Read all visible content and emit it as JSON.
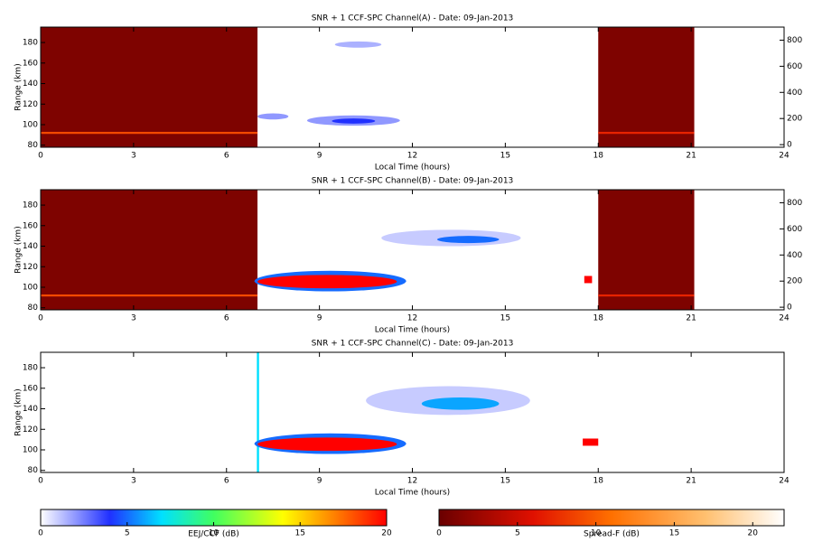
{
  "chart_data": [
    {
      "type": "heatmap",
      "title": "SNR + 1 CCF-SPC Channel(A) - Date: 09-Jan-2013",
      "xlabel": "Local Time (hours)",
      "ylabel": "Range (km)",
      "xlim": [
        0,
        24
      ],
      "xticks": [
        0,
        3,
        6,
        9,
        12,
        15,
        18,
        21,
        24
      ],
      "ylim": [
        78,
        195
      ],
      "yticks": [
        80,
        100,
        120,
        140,
        160,
        180
      ],
      "y2lim": [
        -20,
        900
      ],
      "y2ticks": [
        0,
        200,
        400,
        600,
        800
      ],
      "features": [
        {
          "shape": "rect",
          "bar": 1,
          "x0": 0,
          "x1": 7,
          "y0": 78,
          "y1": 195,
          "value": 1
        },
        {
          "shape": "rect",
          "bar": 1,
          "x0": 18,
          "x1": 21.1,
          "y0": 78,
          "y1": 195,
          "value": 1
        },
        {
          "shape": "rect",
          "bar": 1,
          "x0": 0,
          "x1": 7,
          "y0": 91,
          "y1": 93,
          "value": 9
        },
        {
          "shape": "rect",
          "bar": 1,
          "x0": 18,
          "x1": 21.1,
          "y0": 91,
          "y1": 93,
          "value": 7
        },
        {
          "shape": "ellipse",
          "bar": 0,
          "x0": 7,
          "x1": 8,
          "y0": 105,
          "y1": 111,
          "value": 2
        },
        {
          "shape": "ellipse",
          "bar": 0,
          "x0": 8.6,
          "x1": 11.6,
          "y0": 99,
          "y1": 109,
          "value": 2
        },
        {
          "shape": "ellipse",
          "bar": 0,
          "x0": 9.4,
          "x1": 10.8,
          "y0": 101,
          "y1": 106,
          "value": 4
        },
        {
          "shape": "ellipse",
          "bar": 0,
          "x0": 9.5,
          "x1": 11,
          "y0": 175,
          "y1": 181,
          "value": 1.5
        }
      ]
    },
    {
      "type": "heatmap",
      "title": "SNR + 1 CCF-SPC Channel(B) - Date: 09-Jan-2013",
      "xlabel": "Local Time (hours)",
      "ylabel": "Range (km)",
      "xlim": [
        0,
        24
      ],
      "xticks": [
        0,
        3,
        6,
        9,
        12,
        15,
        18,
        21,
        24
      ],
      "ylim": [
        78,
        195
      ],
      "yticks": [
        80,
        100,
        120,
        140,
        160,
        180
      ],
      "y2lim": [
        -20,
        900
      ],
      "y2ticks": [
        0,
        200,
        400,
        600,
        800
      ],
      "features": [
        {
          "shape": "rect",
          "bar": 1,
          "x0": 0,
          "x1": 7,
          "y0": 78,
          "y1": 195,
          "value": 1
        },
        {
          "shape": "rect",
          "bar": 1,
          "x0": 18,
          "x1": 21.1,
          "y0": 78,
          "y1": 195,
          "value": 1
        },
        {
          "shape": "rect",
          "bar": 1,
          "x0": 0,
          "x1": 7,
          "y0": 91,
          "y1": 93,
          "value": 9
        },
        {
          "shape": "rect",
          "bar": 1,
          "x0": 18,
          "x1": 21.1,
          "y0": 91,
          "y1": 93,
          "value": 7
        },
        {
          "shape": "ellipse",
          "bar": 0,
          "x0": 6.9,
          "x1": 11.8,
          "y0": 96,
          "y1": 116,
          "value": 5
        },
        {
          "shape": "ellipse",
          "bar": 0,
          "x0": 7,
          "x1": 11.5,
          "y0": 99,
          "y1": 112,
          "value": 20
        },
        {
          "shape": "ellipse",
          "bar": 0,
          "x0": 11,
          "x1": 15.5,
          "y0": 140,
          "y1": 156,
          "value": 1
        },
        {
          "shape": "ellipse",
          "bar": 0,
          "x0": 12.8,
          "x1": 14.8,
          "y0": 143,
          "y1": 150,
          "value": 5
        },
        {
          "shape": "rect",
          "bar": 0,
          "x0": 17.55,
          "x1": 17.8,
          "y0": 104,
          "y1": 111,
          "value": 20
        }
      ]
    },
    {
      "type": "heatmap",
      "title": "SNR + 1 CCF-SPC Channel(C) - Date: 09-Jan-2013",
      "xlabel": "Local Time (hours)",
      "ylabel": "Range (km)",
      "xlim": [
        0,
        24
      ],
      "xticks": [
        0,
        3,
        6,
        9,
        12,
        15,
        18,
        21,
        24
      ],
      "ylim": [
        78,
        195
      ],
      "yticks": [
        80,
        100,
        120,
        140,
        160,
        180
      ],
      "features": [
        {
          "shape": "rect",
          "bar": 0,
          "x0": 6.98,
          "x1": 7.05,
          "y0": 78,
          "y1": 195,
          "value": 7
        },
        {
          "shape": "ellipse",
          "bar": 0,
          "x0": 6.9,
          "x1": 11.8,
          "y0": 96,
          "y1": 116,
          "value": 5
        },
        {
          "shape": "ellipse",
          "bar": 0,
          "x0": 7,
          "x1": 11.5,
          "y0": 99,
          "y1": 112,
          "value": 20
        },
        {
          "shape": "ellipse",
          "bar": 0,
          "x0": 10.5,
          "x1": 15.8,
          "y0": 134,
          "y1": 162,
          "value": 1
        },
        {
          "shape": "ellipse",
          "bar": 0,
          "x0": 12.3,
          "x1": 14.8,
          "y0": 139,
          "y1": 151,
          "value": 6
        },
        {
          "shape": "rect",
          "bar": 0,
          "x0": 17.5,
          "x1": 18,
          "y0": 104,
          "y1": 111,
          "value": 20
        }
      ]
    },
    {
      "type": "colorbar",
      "label": "EEJ/CCF (dB)",
      "xlim": [
        0,
        20
      ],
      "xticks": [
        0,
        5,
        10,
        15,
        20
      ],
      "stops": [
        {
          "value": 0,
          "color": "#ffffff"
        },
        {
          "value": 4,
          "color": "#2030ff"
        },
        {
          "value": 7,
          "color": "#00e0ff"
        },
        {
          "value": 10,
          "color": "#40ff60"
        },
        {
          "value": 14,
          "color": "#ffff00"
        },
        {
          "value": 20,
          "color": "#ff0000"
        }
      ]
    },
    {
      "type": "colorbar",
      "label": "Spread-F (dB)",
      "xlim": [
        0,
        22
      ],
      "xticks": [
        0,
        5,
        10,
        15,
        20
      ],
      "stops": [
        {
          "value": 0,
          "color": "#6a0000"
        },
        {
          "value": 6,
          "color": "#e01000"
        },
        {
          "value": 11,
          "color": "#ff7000"
        },
        {
          "value": 17,
          "color": "#ffc070"
        },
        {
          "value": 22,
          "color": "#ffffff"
        }
      ]
    }
  ]
}
